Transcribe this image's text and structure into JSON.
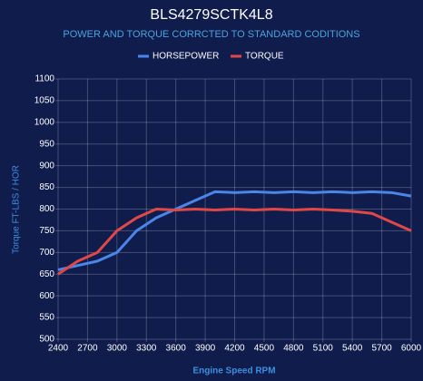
{
  "chart_data": {
    "type": "line",
    "title": "BLS4279SCTK4L8",
    "subtitle": "POWER AND TORQUE CORRCTED TO STANDARD CODITIONS",
    "x_label": "Engine Speed RPM",
    "y_label": "Torque FT-LBS / HOR",
    "x": [
      2400,
      2600,
      2800,
      3000,
      3200,
      3400,
      3600,
      3800,
      4000,
      4200,
      4400,
      4600,
      4800,
      5000,
      5200,
      5400,
      5600,
      5800,
      6000
    ],
    "series": [
      {
        "name": "HORSEPOWER",
        "color": "#4a86e8",
        "values": [
          660,
          670,
          680,
          700,
          750,
          780,
          800,
          820,
          840,
          838,
          840,
          838,
          840,
          838,
          840,
          838,
          840,
          838,
          830
        ]
      },
      {
        "name": "TORQUE",
        "color": "#e04848",
        "values": [
          650,
          680,
          700,
          750,
          780,
          800,
          798,
          800,
          798,
          800,
          798,
          800,
          798,
          800,
          798,
          795,
          790,
          770,
          750
        ]
      }
    ],
    "xlim": [
      2400,
      6000
    ],
    "xticks": [
      2400,
      2700,
      3000,
      3300,
      3600,
      3900,
      4200,
      4500,
      4800,
      5100,
      5400,
      5700,
      6000
    ],
    "ylim": [
      500,
      1100
    ],
    "yticks": [
      500,
      550,
      600,
      650,
      700,
      750,
      800,
      850,
      900,
      950,
      1000,
      1050,
      1100
    ],
    "grid": true,
    "legend": "top"
  }
}
